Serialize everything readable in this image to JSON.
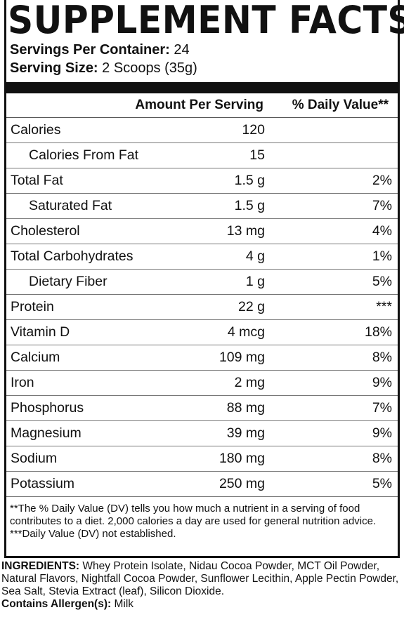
{
  "title": "SUPPLEMENT FACTS",
  "servings_per_container": {
    "label": "Servings Per Container:",
    "value": "24"
  },
  "serving_size": {
    "label": "Serving Size:",
    "value": "2 Scoops (35g)"
  },
  "table": {
    "header": [
      "Amount Per Serving",
      "% Daily Value**"
    ],
    "rows": [
      [
        "Calories",
        "120"
      ],
      [
        "Calories From Fat",
        "15"
      ],
      [
        "Total Fat",
        "1.5 g",
        "2%"
      ],
      [
        "Saturated Fat",
        "1.5 g",
        "7%"
      ],
      [
        "Cholesterol",
        "13 mg",
        "4%"
      ],
      [
        "Total Carbohydrates",
        "4 g",
        "1%"
      ],
      [
        "Dietary Fiber",
        "1 g",
        "5%"
      ],
      [
        "Protein",
        "22 g",
        "***"
      ],
      [
        "Vitamin D",
        "4 mcg",
        "18%"
      ],
      [
        "Calcium",
        "109 mg",
        "8%"
      ],
      [
        "Iron",
        "2 mg",
        "9%"
      ],
      [
        "Phosphorus",
        "88 mg",
        "7%"
      ],
      [
        "Magnesium",
        "39 mg",
        "9%"
      ],
      [
        "Sodium",
        "180 mg",
        "8%"
      ],
      [
        "Potassium",
        "250 mg",
        "5%"
      ]
    ]
  },
  "footnotes": [
    "**The % Daily Value (DV) tells you how much a nutrient in a serving of food contributes to a diet. 2,000 calories a day are used for general nutrition advice.",
    "***Daily Value (DV) not established."
  ],
  "ingredients": {
    "label": "INGREDIENTS:",
    "text": "Whey Protein Isolate, Nidau Cocoa Powder, MCT Oil Powder, Natural Flavors, Nightfall Cocoa Powder, Sunflower Lecithin, Apple Pectin Powder, Sea Salt, Stevia Extract (leaf), Silicon Dioxide."
  },
  "allergens": {
    "label": "Contains Allergen(s):",
    "value": "Milk"
  }
}
